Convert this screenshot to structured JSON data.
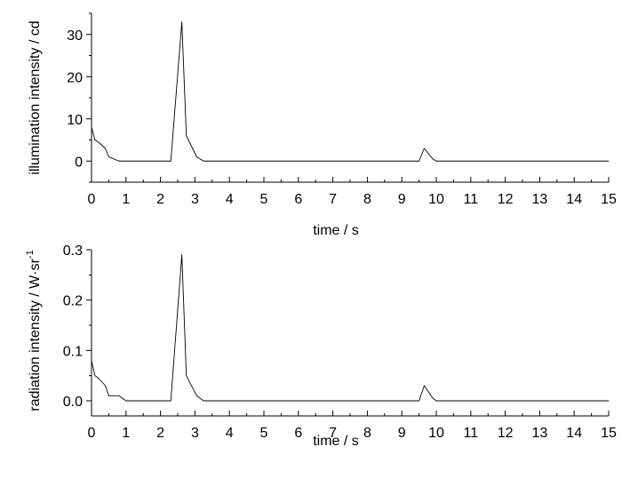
{
  "chart_data": [
    {
      "type": "line",
      "xlabel": "time / s",
      "ylabel": "illumination intensity / cd",
      "xlim": [
        0,
        15
      ],
      "ylim": [
        -5,
        35
      ],
      "xticks": [
        0,
        1,
        2,
        3,
        4,
        5,
        6,
        7,
        8,
        9,
        10,
        11,
        12,
        13,
        14,
        15
      ],
      "xtick_labels": [
        "0",
        "1",
        "2",
        "3",
        "4",
        "5",
        "6",
        "7",
        "8",
        "9",
        "10",
        "11",
        "12",
        "13",
        "14",
        "15"
      ],
      "yticks": [
        0,
        10,
        20,
        30
      ],
      "ytick_labels": [
        "0",
        "10",
        "20",
        "30"
      ],
      "grid": false,
      "series": [
        {
          "color": "#000000",
          "x": [
            0,
            0.1,
            0.2,
            0.4,
            0.5,
            0.8,
            1.0,
            2.3,
            2.62,
            2.75,
            3.05,
            3.25,
            9.5,
            9.65,
            9.9,
            10.0,
            15.0
          ],
          "y": [
            8,
            5,
            4.5,
            3,
            1,
            0,
            0,
            0,
            33,
            6,
            1,
            0,
            0,
            3,
            0.5,
            0,
            0
          ]
        }
      ]
    },
    {
      "type": "line",
      "xlabel": "time / s",
      "ylabel_main": "radiation intensity / W·sr",
      "ylabel_sup": "-1",
      "xlim": [
        0,
        15
      ],
      "ylim": [
        -0.03,
        0.3
      ],
      "xticks": [
        0,
        1,
        2,
        3,
        4,
        5,
        6,
        7,
        8,
        9,
        10,
        11,
        12,
        13,
        14,
        15
      ],
      "xtick_labels": [
        "0",
        "1",
        "2",
        "3",
        "4",
        "5",
        "6",
        "7",
        "8",
        "9",
        "10",
        "11",
        "12",
        "13",
        "14",
        "15"
      ],
      "yticks": [
        0.0,
        0.1,
        0.2,
        0.3
      ],
      "ytick_labels": [
        "0.0",
        "0.1",
        "0.2",
        "0.3"
      ],
      "grid": false,
      "series": [
        {
          "color": "#000000",
          "x": [
            0,
            0.1,
            0.2,
            0.4,
            0.5,
            0.8,
            1.0,
            2.3,
            2.62,
            2.75,
            3.05,
            3.25,
            9.5,
            9.65,
            9.9,
            10.0,
            15.0
          ],
          "y": [
            0.08,
            0.05,
            0.045,
            0.03,
            0.01,
            0.01,
            0,
            0,
            0.29,
            0.05,
            0.01,
            0,
            0,
            0.03,
            0.005,
            0,
            0
          ]
        }
      ]
    }
  ]
}
